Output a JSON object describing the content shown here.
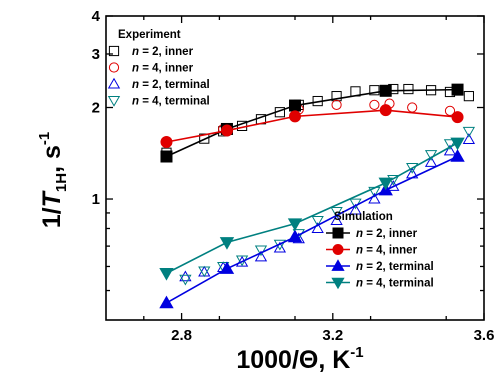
{
  "chart_data": {
    "type": "scatter",
    "xlabel": "1000/Θ, K",
    "xlabel_sup": "-1",
    "ylabel_main": "1/",
    "ylabel_T": "T",
    "ylabel_sub": "1H",
    "ylabel_tail": ", s",
    "ylabel_sup": "-1",
    "xlim": [
      2.6,
      3.6
    ],
    "ylim": [
      0.4,
      4
    ],
    "y_scale": "log",
    "x_ticks": [
      2.8,
      3.2,
      3.6
    ],
    "x_tick_labels": [
      "2.8",
      "3.2",
      "3.6"
    ],
    "y_ticks": [
      1,
      2,
      3,
      4
    ],
    "y_tick_labels": [
      "1",
      "2",
      "3",
      "4"
    ],
    "legends": [
      {
        "title": "Experiment",
        "placement": "top-left"
      },
      {
        "title": "Simulation",
        "placement": "bottom-right"
      }
    ],
    "experiment_series": [
      {
        "label_n": "n",
        "label_rest": " = 2, inner",
        "color": "#000000",
        "marker": "square-open",
        "x": [
          2.76,
          2.86,
          2.91,
          2.96,
          3.01,
          3.06,
          3.11,
          3.16,
          3.21,
          3.26,
          3.31,
          3.36,
          3.4,
          3.46,
          3.51,
          3.56
        ],
        "y": [
          1.42,
          1.58,
          1.67,
          1.74,
          1.83,
          1.93,
          2.04,
          2.1,
          2.18,
          2.26,
          2.28,
          2.3,
          2.3,
          2.28,
          2.25,
          2.18
        ]
      },
      {
        "label_n": "n",
        "label_rest": " = 4, inner",
        "color": "#e00000",
        "marker": "circle-open",
        "x": [
          2.91,
          3.11,
          3.21,
          3.31,
          3.35,
          3.41,
          3.51
        ],
        "y": [
          1.7,
          1.97,
          2.04,
          2.04,
          2.06,
          2.0,
          1.95
        ]
      },
      {
        "label_n": "n",
        "label_rest": " = 2, terminal",
        "color": "#0000e0",
        "marker": "triangle-up-open",
        "x": [
          2.81,
          2.86,
          2.91,
          2.96,
          3.01,
          3.06,
          3.11,
          3.16,
          3.21,
          3.26,
          3.31,
          3.36,
          3.41,
          3.46,
          3.51,
          3.56
        ],
        "y": [
          0.555,
          0.575,
          0.595,
          0.62,
          0.645,
          0.69,
          0.74,
          0.8,
          0.85,
          0.92,
          1.0,
          1.1,
          1.21,
          1.32,
          1.44,
          1.57
        ]
      },
      {
        "label_n": "n",
        "label_rest": " = 4, terminal",
        "color": "#008080",
        "marker": "triangle-down-open",
        "x": [
          2.81,
          2.86,
          2.91,
          2.96,
          3.01,
          3.06,
          3.11,
          3.16,
          3.21,
          3.26,
          3.31,
          3.36,
          3.41,
          3.46,
          3.51,
          3.56
        ],
        "y": [
          0.545,
          0.58,
          0.6,
          0.63,
          0.68,
          0.71,
          0.77,
          0.85,
          0.91,
          0.97,
          1.06,
          1.16,
          1.27,
          1.4,
          1.52,
          1.67
        ]
      }
    ],
    "simulation_series": [
      {
        "label_n": "n",
        "label_rest": " = 2, inner",
        "color": "#000000",
        "marker": "square-filled",
        "x": [
          2.76,
          2.92,
          3.1,
          3.34,
          3.53
        ],
        "y": [
          1.38,
          1.7,
          2.03,
          2.27,
          2.29
        ]
      },
      {
        "label_n": "n",
        "label_rest": " = 4, inner",
        "color": "#e00000",
        "marker": "circle-filled",
        "x": [
          2.76,
          2.92,
          3.1,
          3.34,
          3.53
        ],
        "y": [
          1.54,
          1.68,
          1.87,
          1.96,
          1.86
        ]
      },
      {
        "label_n": "n",
        "label_rest": " = 2, terminal",
        "color": "#0000e0",
        "marker": "triangle-up-filled",
        "x": [
          2.76,
          2.92,
          3.1,
          3.34,
          3.53
        ],
        "y": [
          0.455,
          0.59,
          0.75,
          1.07,
          1.38
        ]
      },
      {
        "label_n": "n",
        "label_rest": " = 4, terminal",
        "color": "#008080",
        "marker": "triangle-down-filled",
        "x": [
          2.76,
          2.92,
          3.1,
          3.34,
          3.53
        ],
        "y": [
          0.57,
          0.72,
          0.83,
          1.13,
          1.53
        ]
      }
    ]
  }
}
